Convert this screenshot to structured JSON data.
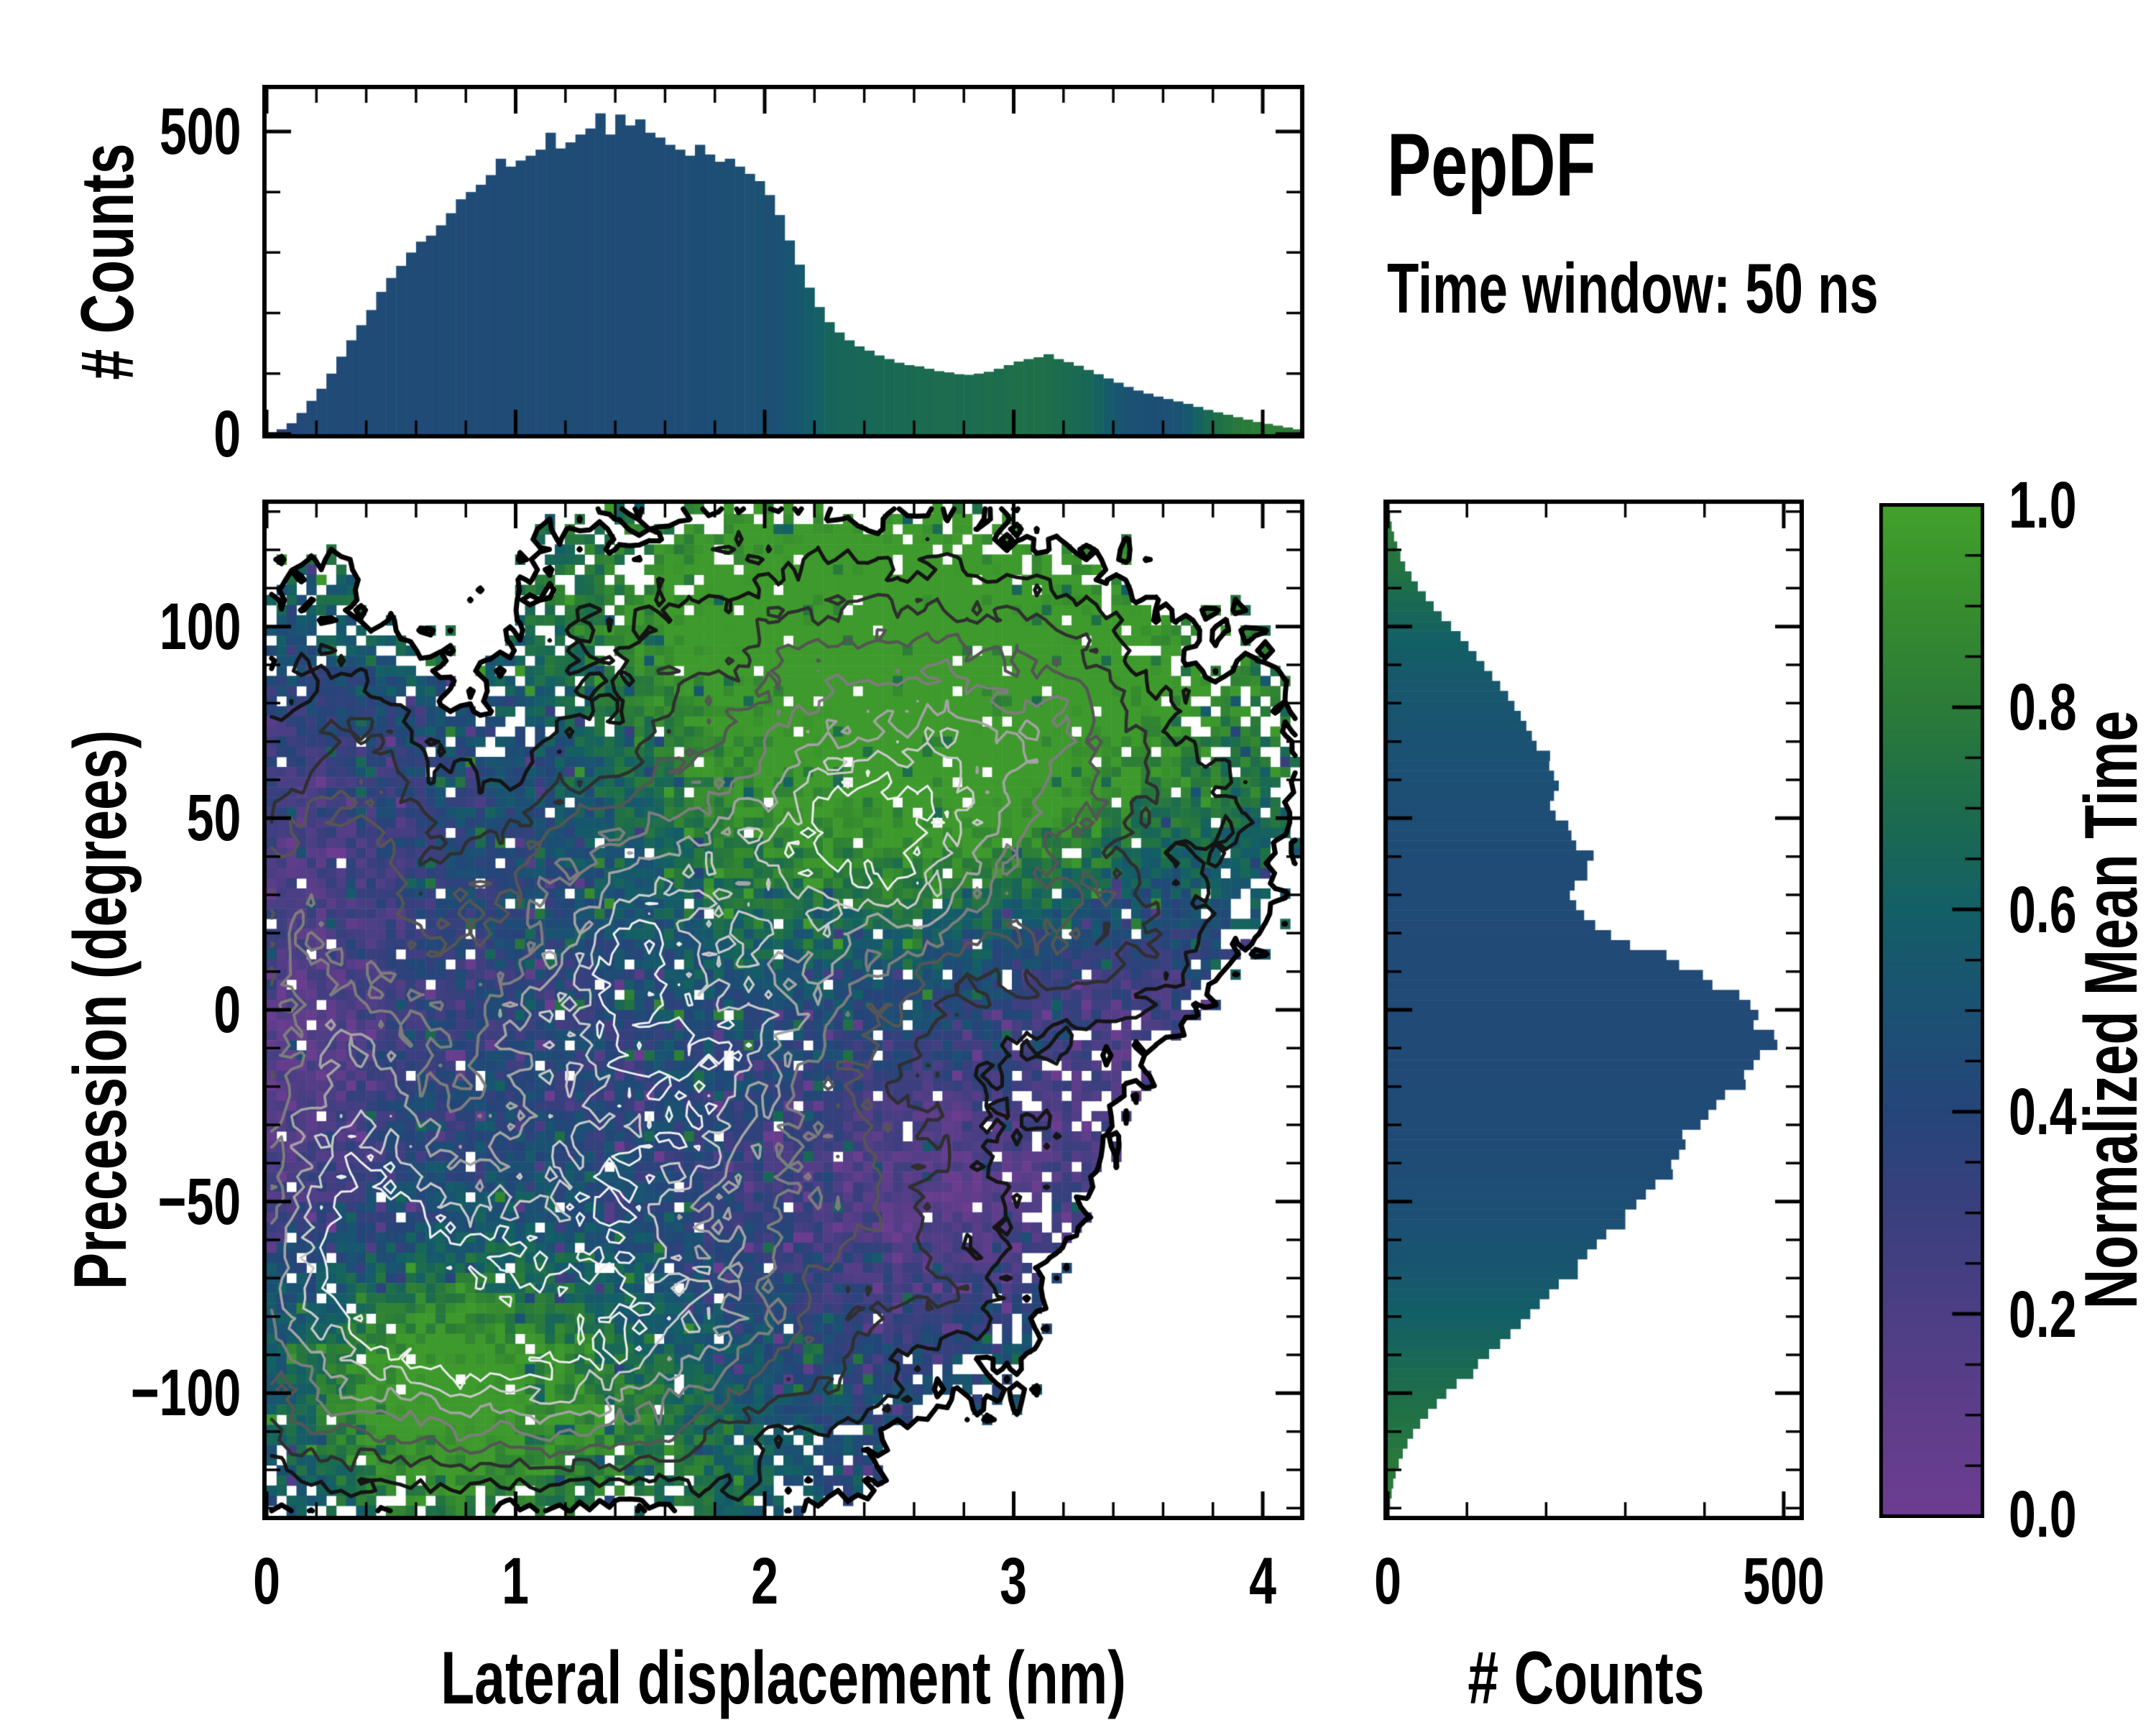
{
  "labels": {
    "title": "PepDF",
    "subtitle": "Time window: 50 ns",
    "xlabel": "Lateral displacement (nm)",
    "ylabel": "Precession (degrees)",
    "counts_top": "# Counts",
    "counts_right": "# Counts",
    "colorbar": "Normalized Mean Time"
  },
  "ticks": {
    "top_y": [
      "500",
      "0"
    ],
    "main_y": [
      "100",
      "50",
      "0",
      "−50",
      "−100"
    ],
    "main_x": [
      "0",
      "1",
      "2",
      "3",
      "4"
    ],
    "right_x": [
      "0",
      "500"
    ],
    "cbar": [
      "1.0",
      "0.8",
      "0.6",
      "0.4",
      "0.2",
      "0.0"
    ]
  },
  "colormap": {
    "stops": [
      [
        0.0,
        "#6d3d92"
      ],
      [
        0.1,
        "#5e3d8a"
      ],
      [
        0.2,
        "#4c3e85"
      ],
      [
        0.3,
        "#3a3f7e"
      ],
      [
        0.4,
        "#254579"
      ],
      [
        0.5,
        "#1b5173"
      ],
      [
        0.6,
        "#135f66"
      ],
      [
        0.7,
        "#1c6c4d"
      ],
      [
        0.8,
        "#2b7b38"
      ],
      [
        0.9,
        "#378d2e"
      ],
      [
        1.0,
        "#42a22b"
      ]
    ]
  },
  "axes": {
    "top": {
      "x": {
        "min": 0,
        "max": 4.15,
        "majors": [
          0,
          1,
          2,
          3,
          4
        ],
        "minor": 0.2
      },
      "y": {
        "min": 0,
        "max": 570,
        "majors": [
          0,
          500
        ],
        "minor": 100
      }
    },
    "main": {
      "x": {
        "min": 0,
        "max": 4.15,
        "majors": [
          0,
          1,
          2,
          3,
          4
        ],
        "minor": 0.2
      },
      "y": {
        "min": -132,
        "max": 132,
        "majors": [
          -100,
          -50,
          0,
          50,
          100
        ],
        "minor": 10
      }
    },
    "right": {
      "x": {
        "min": 0,
        "max": 520,
        "majors": [
          0,
          500
        ],
        "minor": 100
      },
      "y": {
        "min": -132,
        "max": 132,
        "majors": [
          -100,
          -50,
          0,
          50,
          100
        ],
        "minor": 10
      }
    },
    "cbar": {
      "min": 0,
      "max": 1,
      "majors": [
        0,
        0.2,
        0.4,
        0.6,
        0.8,
        1
      ],
      "minor": 0.05
    }
  },
  "chart_data": {
    "type": "composite",
    "description": "Joint 2D histogram of lateral displacement (nm) vs precession (degrees), bins colored by normalized mean time (purple=0 to green=1), with count contours (black outer boundary to near-white core around x≈1.4 nm, y≈0°). Marginal count histograms on top (peak ≈530 at ≈1.4 nm) and right (peak ≈490 near 0°), bars colored by mean time.",
    "heatmap": {
      "type": "heatmap",
      "x_range": [
        0,
        4.15
      ],
      "y_range": [
        -132,
        132
      ],
      "grid": [
        104,
        100
      ],
      "value_label": "Normalized Mean Time",
      "regions": "core dense navy-blue at (1.4,0); purple: left edge x<0.35, island (2.4-3.5,-10..-70), patch (3.3-3.7,0..35); green: top-right quadrant (x>1.8,y>30) and bottom-left lobe (0.4-1.6,-85..-128); scattered white empty bins, denser near the ragged boundary",
      "density_blobs": [
        [
          1.45,
          -5,
          0.7,
          45,
          1.0
        ],
        [
          2.45,
          45,
          0.5,
          32,
          0.5
        ],
        [
          3.15,
          65,
          0.55,
          38,
          0.5
        ],
        [
          1.05,
          -95,
          0.6,
          26,
          0.55
        ],
        [
          2.85,
          -40,
          0.4,
          26,
          0.26
        ],
        [
          0.18,
          0,
          0.32,
          85,
          0.6
        ],
        [
          2.0,
          95,
          0.7,
          32,
          0.38
        ],
        [
          3.5,
          15,
          0.3,
          22,
          0.2
        ],
        [
          2.0,
          -80,
          0.8,
          30,
          0.35
        ],
        [
          0.55,
          -70,
          0.45,
          30,
          0.35
        ],
        [
          3.9,
          50,
          0.25,
          22,
          0.15
        ]
      ],
      "time_base": 0.46,
      "time_blobs": [
        [
          0.1,
          -5,
          0.38,
          60,
          -0.32
        ],
        [
          0.7,
          90,
          0.8,
          35,
          -0.13
        ],
        [
          1.4,
          -5,
          0.9,
          45,
          -0.07
        ],
        [
          2.85,
          -38,
          0.55,
          32,
          -0.32
        ],
        [
          3.5,
          14,
          0.42,
          26,
          -0.3
        ],
        [
          3.0,
          85,
          1.2,
          55,
          0.42
        ],
        [
          2.0,
          120,
          1.0,
          28,
          0.34
        ],
        [
          2.6,
          55,
          0.9,
          40,
          0.26
        ],
        [
          1.05,
          -110,
          0.65,
          28,
          0.48
        ],
        [
          0.45,
          -85,
          0.5,
          30,
          0.26
        ],
        [
          0.15,
          118,
          0.4,
          25,
          0.2
        ]
      ],
      "boundary_level": 0.2,
      "noise_taper": 0.14,
      "noise": {
        "seed_lf": 7,
        "scale_lf": 9,
        "amp_lf": 0.085,
        "seed_hf": 19,
        "scale_hf": 26,
        "amp_hf": 0.05,
        "seed_tlf": 13,
        "scale_tlf": 7,
        "amp_tlf": 0.09,
        "seed_cells": 11,
        "cell_jitter": 0.1,
        "t_cell": 0.13
      },
      "hole": {
        "base": 0.035,
        "edge": 0.3,
        "range": 0.17
      },
      "contours": {
        "levels": [
          0.2,
          0.34,
          0.47,
          0.59,
          0.7,
          0.8,
          0.89,
          0.96
        ],
        "colors": [
          "#000000",
          "#141414",
          "#2f2f2f",
          "#555555",
          "#7d7d7d",
          "#a3a3a3",
          "#c9c9c9",
          "#eeeeee"
        ],
        "widths": [
          7,
          5,
          4.5,
          4.2,
          4,
          3.6,
          3.2,
          3
        ]
      }
    },
    "top_histogram": {
      "type": "bar",
      "orientation": "vertical",
      "xlabel": "Lateral displacement (nm)",
      "ylabel": "# Counts",
      "ylim": [
        0,
        570
      ],
      "x0": 0,
      "bin": 0.04,
      "values": [
        3,
        8,
        18,
        35,
        55,
        75,
        100,
        128,
        155,
        180,
        205,
        235,
        258,
        278,
        300,
        318,
        328,
        345,
        365,
        388,
        400,
        412,
        428,
        455,
        442,
        452,
        460,
        470,
        498,
        472,
        482,
        495,
        505,
        530,
        495,
        528,
        510,
        520,
        498,
        490,
        478,
        470,
        460,
        478,
        462,
        450,
        455,
        442,
        430,
        418,
        395,
        362,
        320,
        280,
        242,
        210,
        185,
        168,
        155,
        145,
        138,
        130,
        124,
        118,
        114,
        112,
        108,
        104,
        102,
        99,
        98,
        100,
        103,
        108,
        114,
        120,
        124,
        127,
        132,
        124,
        119,
        113,
        106,
        99,
        92,
        85,
        78,
        72,
        67,
        62,
        58,
        54,
        50,
        45,
        40,
        36,
        32,
        28,
        24,
        20,
        17,
        14,
        11,
        8
      ],
      "mean_time": [
        0.32,
        0.36,
        0.4,
        0.43,
        0.44,
        0.44,
        0.45,
        0.44,
        0.45,
        0.45,
        0.45,
        0.44,
        0.45,
        0.46,
        0.45,
        0.45,
        0.44,
        0.45,
        0.46,
        0.45,
        0.45,
        0.46,
        0.45,
        0.44,
        0.45,
        0.46,
        0.45,
        0.45,
        0.46,
        0.45,
        0.46,
        0.45,
        0.45,
        0.46,
        0.45,
        0.46,
        0.45,
        0.46,
        0.46,
        0.45,
        0.46,
        0.46,
        0.47,
        0.46,
        0.47,
        0.47,
        0.48,
        0.48,
        0.49,
        0.5,
        0.48,
        0.5,
        0.52,
        0.55,
        0.58,
        0.61,
        0.64,
        0.65,
        0.65,
        0.66,
        0.66,
        0.67,
        0.67,
        0.68,
        0.68,
        0.69,
        0.69,
        0.7,
        0.7,
        0.69,
        0.69,
        0.7,
        0.71,
        0.7,
        0.71,
        0.72,
        0.71,
        0.72,
        0.71,
        0.7,
        0.69,
        0.68,
        0.66,
        0.62,
        0.57,
        0.53,
        0.5,
        0.49,
        0.48,
        0.48,
        0.49,
        0.51,
        0.55,
        0.62,
        0.68,
        0.72,
        0.75,
        0.78,
        0.8,
        0.81,
        0.82,
        0.81,
        0.8,
        0.79
      ]
    },
    "right_histogram": {
      "type": "bar",
      "orientation": "horizontal",
      "xlabel": "# Counts",
      "xlim": [
        0,
        520
      ],
      "y0": 130,
      "bin": -2.6,
      "values": [
        3,
        5,
        8,
        12,
        16,
        22,
        30,
        38,
        48,
        58,
        68,
        80,
        92,
        102,
        112,
        122,
        132,
        142,
        152,
        160,
        168,
        175,
        182,
        188,
        205,
        204,
        210,
        216,
        210,
        205,
        212,
        228,
        232,
        238,
        260,
        252,
        252,
        236,
        230,
        238,
        248,
        262,
        282,
        306,
        352,
        368,
        398,
        410,
        444,
        458,
        468,
        462,
        488,
        492,
        470,
        462,
        450,
        452,
        426,
        415,
        405,
        395,
        372,
        376,
        368,
        358,
        360,
        338,
        326,
        314,
        300,
        300,
        276,
        264,
        252,
        240,
        240,
        216,
        204,
        192,
        180,
        168,
        155,
        142,
        128,
        114,
        108,
        87,
        74,
        62,
        51,
        41,
        32,
        25,
        19,
        14,
        10,
        7,
        5,
        3
      ],
      "mean_time": [
        0.8,
        0.79,
        0.78,
        0.77,
        0.76,
        0.75,
        0.73,
        0.71,
        0.69,
        0.67,
        0.65,
        0.63,
        0.61,
        0.6,
        0.58,
        0.57,
        0.56,
        0.55,
        0.54,
        0.53,
        0.52,
        0.52,
        0.51,
        0.5,
        0.5,
        0.49,
        0.49,
        0.48,
        0.48,
        0.47,
        0.47,
        0.47,
        0.46,
        0.46,
        0.46,
        0.45,
        0.45,
        0.45,
        0.45,
        0.45,
        0.45,
        0.44,
        0.44,
        0.44,
        0.44,
        0.44,
        0.44,
        0.44,
        0.44,
        0.44,
        0.44,
        0.44,
        0.44,
        0.44,
        0.44,
        0.44,
        0.44,
        0.44,
        0.45,
        0.45,
        0.45,
        0.45,
        0.45,
        0.45,
        0.46,
        0.46,
        0.46,
        0.47,
        0.47,
        0.48,
        0.48,
        0.49,
        0.5,
        0.51,
        0.52,
        0.53,
        0.54,
        0.55,
        0.57,
        0.58,
        0.6,
        0.61,
        0.63,
        0.64,
        0.66,
        0.67,
        0.69,
        0.7,
        0.71,
        0.72,
        0.73,
        0.74,
        0.75,
        0.76,
        0.77,
        0.78,
        0.78,
        0.79,
        0.8,
        0.8
      ]
    },
    "colorbar": {
      "type": "colorbar",
      "label": "Normalized Mean Time",
      "min": 0.0,
      "max": 1.0,
      "tick_step": 0.2
    }
  }
}
